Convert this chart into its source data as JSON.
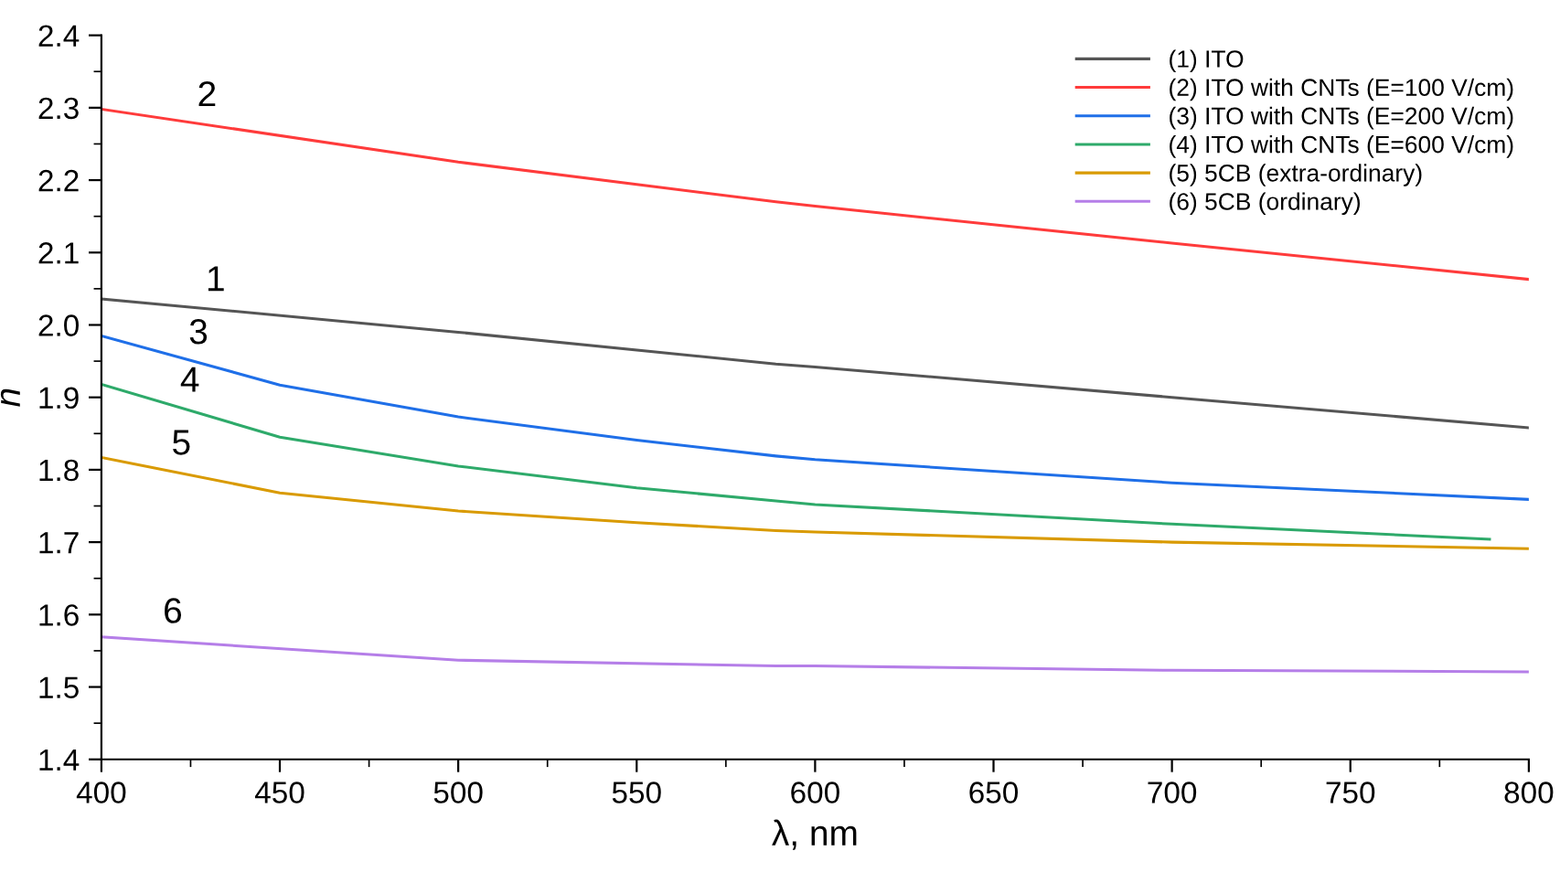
{
  "chart_data": {
    "type": "line",
    "xlabel": "λ, nm",
    "ylabel": "n",
    "xlim": [
      400,
      800
    ],
    "ylim": [
      1.4,
      2.4
    ],
    "xticks": [
      400,
      450,
      500,
      550,
      600,
      650,
      700,
      750,
      800
    ],
    "yticks": [
      {
        "value": 1.4,
        "label": "1.4"
      },
      {
        "value": 1.5,
        "label": "1.5"
      },
      {
        "value": 1.6,
        "label": "1.6"
      },
      {
        "value": 1.7,
        "label": "1.7"
      },
      {
        "value": 1.8,
        "label": "1.8"
      },
      {
        "value": 1.9,
        "label": "1.9"
      },
      {
        "value": 2.0,
        "label": "2.0"
      },
      {
        "value": 2.1,
        "label": "2.1"
      },
      {
        "value": 2.2,
        "label": "2.2"
      },
      {
        "value": 2.3,
        "label": "2.3"
      },
      {
        "value": 2.4,
        "label": "2.4"
      }
    ],
    "grid": false,
    "legend": "top right",
    "marker": "none",
    "line_style": "solid",
    "series": [
      {
        "name": "(1) ITO",
        "color": "#555555",
        "x": [
          400,
          500,
          589,
          600,
          700,
          800
        ],
        "values": [
          2.036,
          1.99,
          1.946,
          1.942,
          1.9,
          1.858
        ]
      },
      {
        "name": "(2) ITO with CNTs (E=100 V/cm)",
        "color": "#ff3b3b",
        "x": [
          400,
          500,
          589,
          600,
          700,
          800
        ],
        "values": [
          2.298,
          2.225,
          2.17,
          2.164,
          2.113,
          2.063
        ]
      },
      {
        "name": "(3) ITO with CNTs (E=200 V/cm)",
        "color": "#1f6fe8",
        "x": [
          400,
          450,
          500,
          550,
          589,
          600,
          700,
          800
        ],
        "values": [
          1.985,
          1.917,
          1.873,
          1.841,
          1.819,
          1.814,
          1.782,
          1.759
        ]
      },
      {
        "name": "(4) ITO with CNTs (E=600 V/cm)",
        "color": "#2eaa6a",
        "x": [
          400,
          450,
          500,
          550,
          589,
          600,
          700,
          789
        ],
        "values": [
          1.918,
          1.845,
          1.805,
          1.775,
          1.757,
          1.752,
          1.725,
          1.704
        ]
      },
      {
        "name": "(5) 5CB (extra-ordinary)",
        "color": "#d99a00",
        "x": [
          400,
          450,
          500,
          550,
          589,
          600,
          700,
          800
        ],
        "values": [
          1.817,
          1.768,
          1.743,
          1.727,
          1.716,
          1.714,
          1.7,
          1.691
        ]
      },
      {
        "name": "(6) 5CB (ordinary)",
        "color": "#b57ee8",
        "x": [
          400,
          500,
          589,
          600,
          700,
          800
        ],
        "values": [
          1.569,
          1.537,
          1.529,
          1.529,
          1.523,
          1.521
        ]
      }
    ],
    "annotations": [
      "1",
      "2",
      "3",
      "4",
      "5",
      "6"
    ]
  }
}
